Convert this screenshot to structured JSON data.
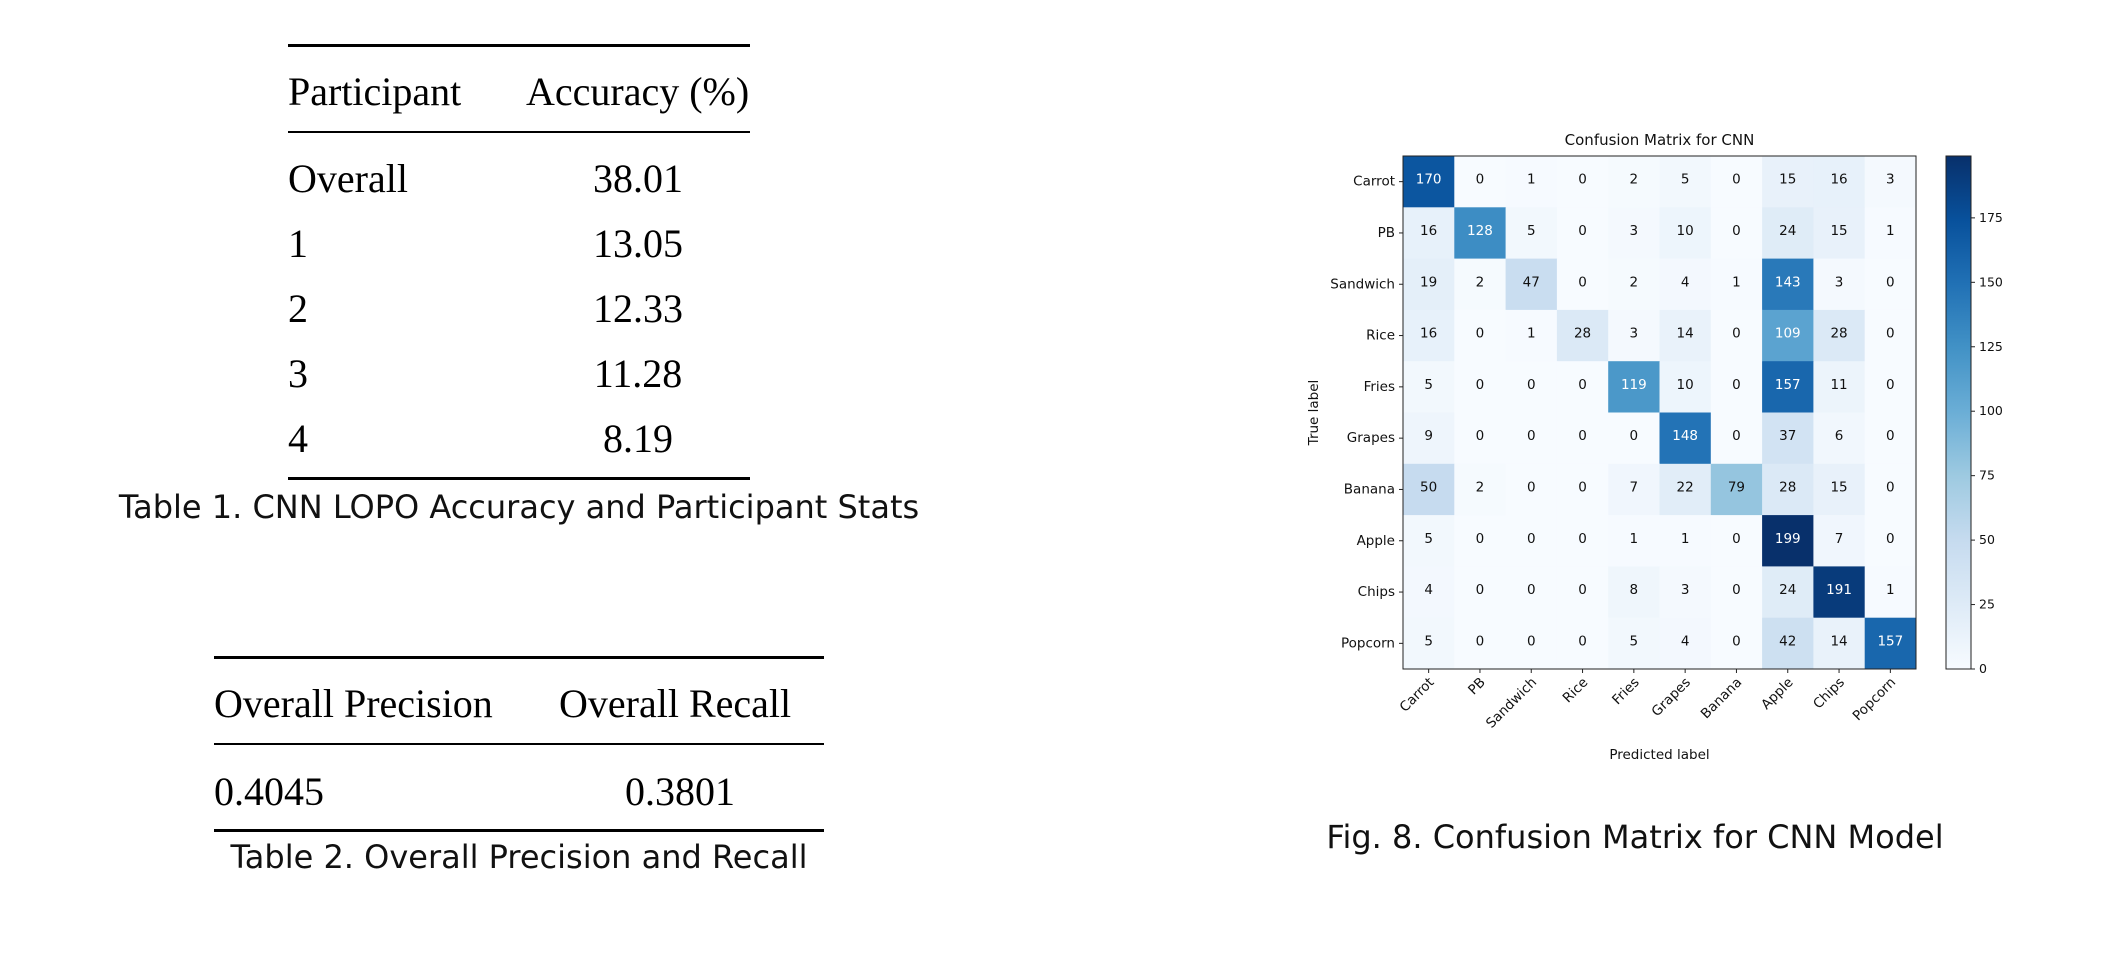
{
  "table1": {
    "headers": [
      "Participant",
      "Accuracy (%)"
    ],
    "rows": [
      [
        "Overall",
        "38.01"
      ],
      [
        "1",
        "13.05"
      ],
      [
        "2",
        "12.33"
      ],
      [
        "3",
        "11.28"
      ],
      [
        "4",
        "8.19"
      ]
    ],
    "caption": "Table 1.  CNN LOPO Accuracy and Participant Stats"
  },
  "table2": {
    "headers": [
      "Overall Precision",
      "Overall Recall"
    ],
    "rows": [
      [
        "0.4045",
        "0.3801"
      ]
    ],
    "caption": "Table 2.  Overall Precision and Recall"
  },
  "figure": {
    "caption": "Fig. 8.  Confusion Matrix for CNN Model"
  },
  "chart_data": {
    "type": "heatmap",
    "title": "Confusion Matrix for CNN",
    "xlabel": "Predicted label",
    "ylabel": "True label",
    "labels": [
      "Carrot",
      "PB",
      "Sandwich",
      "Rice",
      "Fries",
      "Grapes",
      "Banana",
      "Apple",
      "Chips",
      "Popcorn"
    ],
    "matrix": [
      [
        170,
        0,
        1,
        0,
        2,
        5,
        0,
        15,
        16,
        3
      ],
      [
        16,
        128,
        5,
        0,
        3,
        10,
        0,
        24,
        15,
        1
      ],
      [
        19,
        2,
        47,
        0,
        2,
        4,
        1,
        143,
        3,
        0
      ],
      [
        16,
        0,
        1,
        28,
        3,
        14,
        0,
        109,
        28,
        0
      ],
      [
        5,
        0,
        0,
        0,
        119,
        10,
        0,
        157,
        11,
        0
      ],
      [
        9,
        0,
        0,
        0,
        0,
        148,
        0,
        37,
        6,
        0
      ],
      [
        50,
        2,
        0,
        0,
        7,
        22,
        79,
        28,
        15,
        0
      ],
      [
        5,
        0,
        0,
        0,
        1,
        1,
        0,
        199,
        7,
        0
      ],
      [
        4,
        0,
        0,
        0,
        8,
        3,
        0,
        24,
        191,
        1
      ],
      [
        5,
        0,
        0,
        0,
        5,
        4,
        0,
        42,
        14,
        157
      ]
    ],
    "colormap": "Blues",
    "colorbar": {
      "range": [
        0,
        199
      ],
      "ticks": [
        0,
        25,
        50,
        75,
        100,
        125,
        150,
        175
      ]
    },
    "colors": {
      "low": "#f7fbff",
      "high": "#08306b"
    }
  }
}
